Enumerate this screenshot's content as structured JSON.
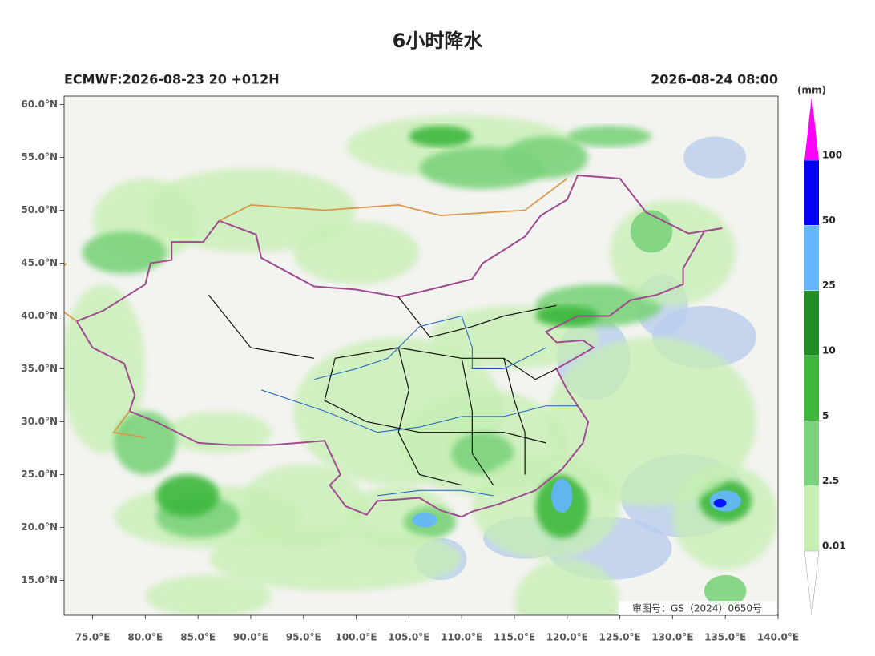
{
  "title": "6小时降水",
  "subtitle_left": "ECMWF:2026-08-23 20 +012H",
  "subtitle_right": "2026-08-24 08:00",
  "approval_number": "审图号：GS（2024）0650号",
  "map": {
    "lon_range": [
      72.3,
      140
    ],
    "lat_range": [
      11.7,
      60.8
    ],
    "lon_ticks": [
      {
        "value": 75,
        "label": "75.0°E"
      },
      {
        "value": 80,
        "label": "80.0°E"
      },
      {
        "value": 85,
        "label": "85.0°E"
      },
      {
        "value": 90,
        "label": "90.0°E"
      },
      {
        "value": 95,
        "label": "95.0°E"
      },
      {
        "value": 100,
        "label": "100.0°E"
      },
      {
        "value": 105,
        "label": "105.0°E"
      },
      {
        "value": 110,
        "label": "110.0°E"
      },
      {
        "value": 115,
        "label": "115.0°E"
      },
      {
        "value": 120,
        "label": "120.0°E"
      },
      {
        "value": 125,
        "label": "125.0°E"
      },
      {
        "value": 130,
        "label": "130.0°E"
      },
      {
        "value": 135,
        "label": "135.0°E"
      },
      {
        "value": 140,
        "label": "140.0°E"
      }
    ],
    "lat_ticks": [
      {
        "value": 15,
        "label": "15.0°N"
      },
      {
        "value": 20,
        "label": "20.0°N"
      },
      {
        "value": 25,
        "label": "25.0°N"
      },
      {
        "value": 30,
        "label": "30.0°N"
      },
      {
        "value": 35,
        "label": "35.0°N"
      },
      {
        "value": 40,
        "label": "40.0°N"
      },
      {
        "value": 45,
        "label": "45.0°N"
      },
      {
        "value": 50,
        "label": "50.0°N"
      },
      {
        "value": 55,
        "label": "55.0°N"
      },
      {
        "value": 60,
        "label": "60.0°N"
      }
    ]
  },
  "colorbar": {
    "unit": "(mm)",
    "levels": [
      0.01,
      2.5,
      5,
      10,
      25,
      50,
      100
    ],
    "colors": [
      "#c6efb2",
      "#7bd37b",
      "#3db83d",
      "#238c23",
      "#63b6ff",
      "#0000ff",
      "#ff00ff"
    ]
  }
}
